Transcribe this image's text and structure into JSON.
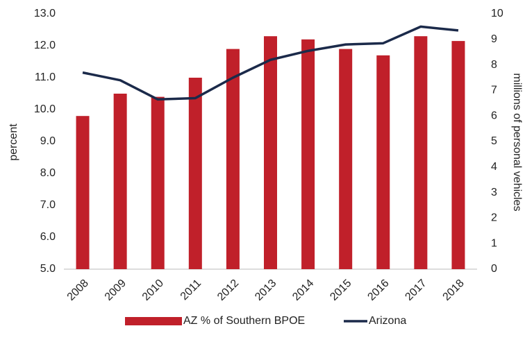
{
  "chart_data": {
    "type": "bar",
    "categories": [
      "2008",
      "2009",
      "2010",
      "2011",
      "2012",
      "2013",
      "2014",
      "2015",
      "2016",
      "2017",
      "2018"
    ],
    "series": [
      {
        "name": "AZ % of Southern BPOE",
        "type": "bar",
        "color": "#c0202a",
        "values": [
          9.8,
          10.5,
          10.4,
          11.0,
          11.9,
          12.3,
          12.2,
          11.9,
          11.7,
          12.3,
          12.15
        ]
      },
      {
        "name": "Arizona",
        "type": "line",
        "axis": "y2",
        "color": "#1b2a4a",
        "values": [
          7.7,
          7.4,
          6.65,
          6.7,
          7.5,
          8.2,
          8.55,
          8.8,
          8.85,
          9.5,
          9.35
        ]
      }
    ],
    "ylabel": "percent",
    "y2label": "millions of personal vehicles",
    "ylim": [
      5,
      13
    ],
    "yticks": [
      {
        "value": 5,
        "label": "5.0"
      },
      {
        "value": 6,
        "label": "6.0"
      },
      {
        "value": 7,
        "label": "7.0"
      },
      {
        "value": 8,
        "label": "8.0"
      },
      {
        "value": 9,
        "label": "9.0"
      },
      {
        "value": 10,
        "label": "10.0"
      },
      {
        "value": 11,
        "label": "11.0"
      },
      {
        "value": 12,
        "label": "12.0"
      },
      {
        "value": 13,
        "label": "13.0"
      }
    ],
    "y2lim": [
      0,
      10
    ],
    "y2ticks": [
      0,
      1,
      2,
      3,
      4,
      5,
      6,
      7,
      8,
      9,
      10
    ],
    "grid": false,
    "legend": "bottom"
  }
}
